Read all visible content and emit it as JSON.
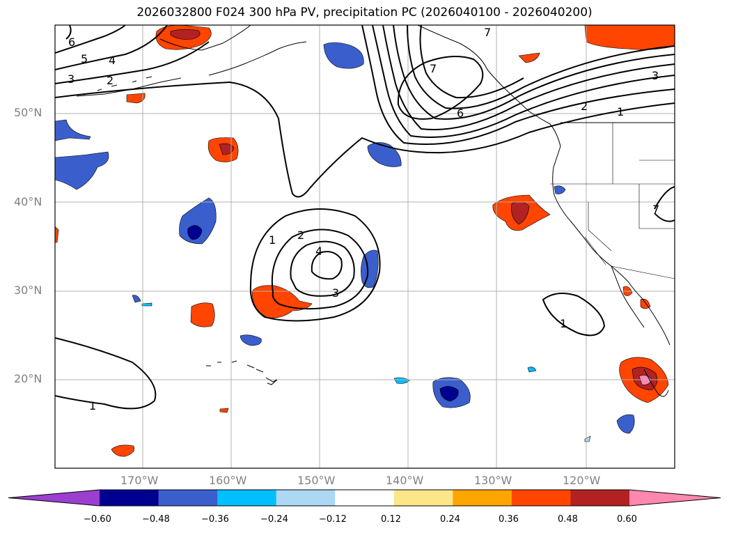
{
  "title": "2026032800 F024 300 hPa PV, precipitation PC (2026040100 - 2026040200)",
  "axes": {
    "lat_labels": [
      "50°N",
      "40°N",
      "30°N",
      "20°N"
    ],
    "lon_labels": [
      "170°W",
      "160°W",
      "150°W",
      "140°W",
      "130°W",
      "120°W"
    ]
  },
  "colorbar": {
    "tick_labels": [
      "−0.60",
      "−0.48",
      "−0.36",
      "−0.24",
      "−0.12",
      "0.12",
      "0.24",
      "0.36",
      "0.48",
      "0.60"
    ],
    "colors": [
      "#9b3fd0",
      "#000090",
      "#3a5fcd",
      "#00bfff",
      "#add8f5",
      "#ffffff",
      "#fde68a",
      "#ffa500",
      "#ff4500",
      "#b22222",
      "#ff88b0"
    ]
  },
  "contour_labels": {
    "nw": [
      "6",
      "5",
      "4",
      "3",
      "2"
    ],
    "ne_ridge": [
      "7",
      "7",
      "6",
      "3",
      "2",
      "1",
      "7"
    ],
    "low": [
      "1",
      "2",
      "4",
      "3"
    ],
    "sw": [
      "1"
    ],
    "se": [
      "1"
    ]
  }
}
